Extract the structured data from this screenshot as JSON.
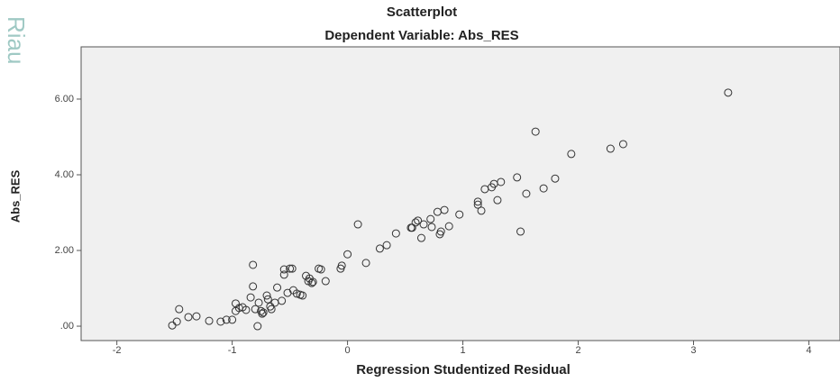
{
  "watermark": "Riau",
  "chart_data": {
    "type": "scatter",
    "title": "Scatterplot",
    "subtitle": "Dependent Variable: Abs_RES",
    "x_label": "Regression Studentized Residual",
    "y_label": "Abs_RES",
    "color": "#333333",
    "xlim": [
      -2.31,
      4.27
    ],
    "ylim": [
      -0.38,
      7.38
    ],
    "xticks": [
      -2,
      -1,
      0,
      1,
      2,
      3,
      4
    ],
    "yticks": [
      {
        "value": 0,
        "label": ".00"
      },
      {
        "value": 2,
        "label": "2.00"
      },
      {
        "value": 4,
        "label": "4.00"
      },
      {
        "value": 6,
        "label": "6.00"
      }
    ],
    "x": [
      -1.52,
      -1.46,
      -1.48,
      -1.38,
      -1.31,
      -1.2,
      -1.1,
      -1.05,
      -1.0,
      -0.97,
      -0.97,
      -0.94,
      -0.91,
      -0.88,
      -0.84,
      -0.82,
      -0.82,
      -0.8,
      -0.78,
      -0.77,
      -0.75,
      -0.74,
      -0.73,
      -0.7,
      -0.69,
      -0.67,
      -0.66,
      -0.63,
      -0.61,
      -0.57,
      -0.55,
      -0.55,
      -0.52,
      -0.5,
      -0.48,
      -0.47,
      -0.44,
      -0.41,
      -0.39,
      -0.36,
      -0.34,
      -0.33,
      -0.31,
      -0.3,
      -0.25,
      -0.23,
      -0.19,
      -0.06,
      -0.05,
      0.0,
      0.09,
      0.16,
      0.28,
      0.34,
      0.42,
      0.55,
      0.56,
      0.59,
      0.61,
      0.64,
      0.66,
      0.72,
      0.73,
      0.78,
      0.8,
      0.81,
      0.84,
      0.88,
      0.97,
      1.13,
      1.13,
      1.16,
      1.19,
      1.25,
      1.27,
      1.3,
      1.33,
      1.47,
      1.5,
      1.55,
      1.63,
      1.7,
      1.8,
      1.94,
      2.28,
      2.39,
      3.3
    ],
    "values": [
      0.02,
      0.45,
      0.12,
      0.24,
      0.26,
      0.14,
      0.12,
      0.17,
      0.17,
      0.4,
      0.6,
      0.48,
      0.5,
      0.43,
      0.76,
      1.62,
      1.05,
      0.45,
      0.0,
      0.62,
      0.4,
      0.33,
      0.36,
      0.81,
      0.71,
      0.52,
      0.45,
      0.62,
      1.02,
      0.67,
      1.36,
      1.5,
      0.88,
      1.52,
      1.52,
      0.95,
      0.86,
      0.83,
      0.81,
      1.33,
      1.19,
      1.26,
      1.14,
      1.17,
      1.52,
      1.5,
      1.19,
      1.52,
      1.6,
      1.9,
      2.69,
      1.67,
      2.05,
      2.14,
      2.45,
      2.6,
      2.6,
      2.74,
      2.79,
      2.33,
      2.69,
      2.83,
      2.62,
      3.02,
      2.43,
      2.5,
      3.07,
      2.64,
      2.95,
      3.29,
      3.21,
      3.05,
      3.62,
      3.67,
      3.76,
      3.33,
      3.81,
      3.93,
      2.5,
      3.5,
      5.14,
      3.64,
      3.9,
      4.55,
      4.69,
      4.81,
      6.17
    ]
  }
}
